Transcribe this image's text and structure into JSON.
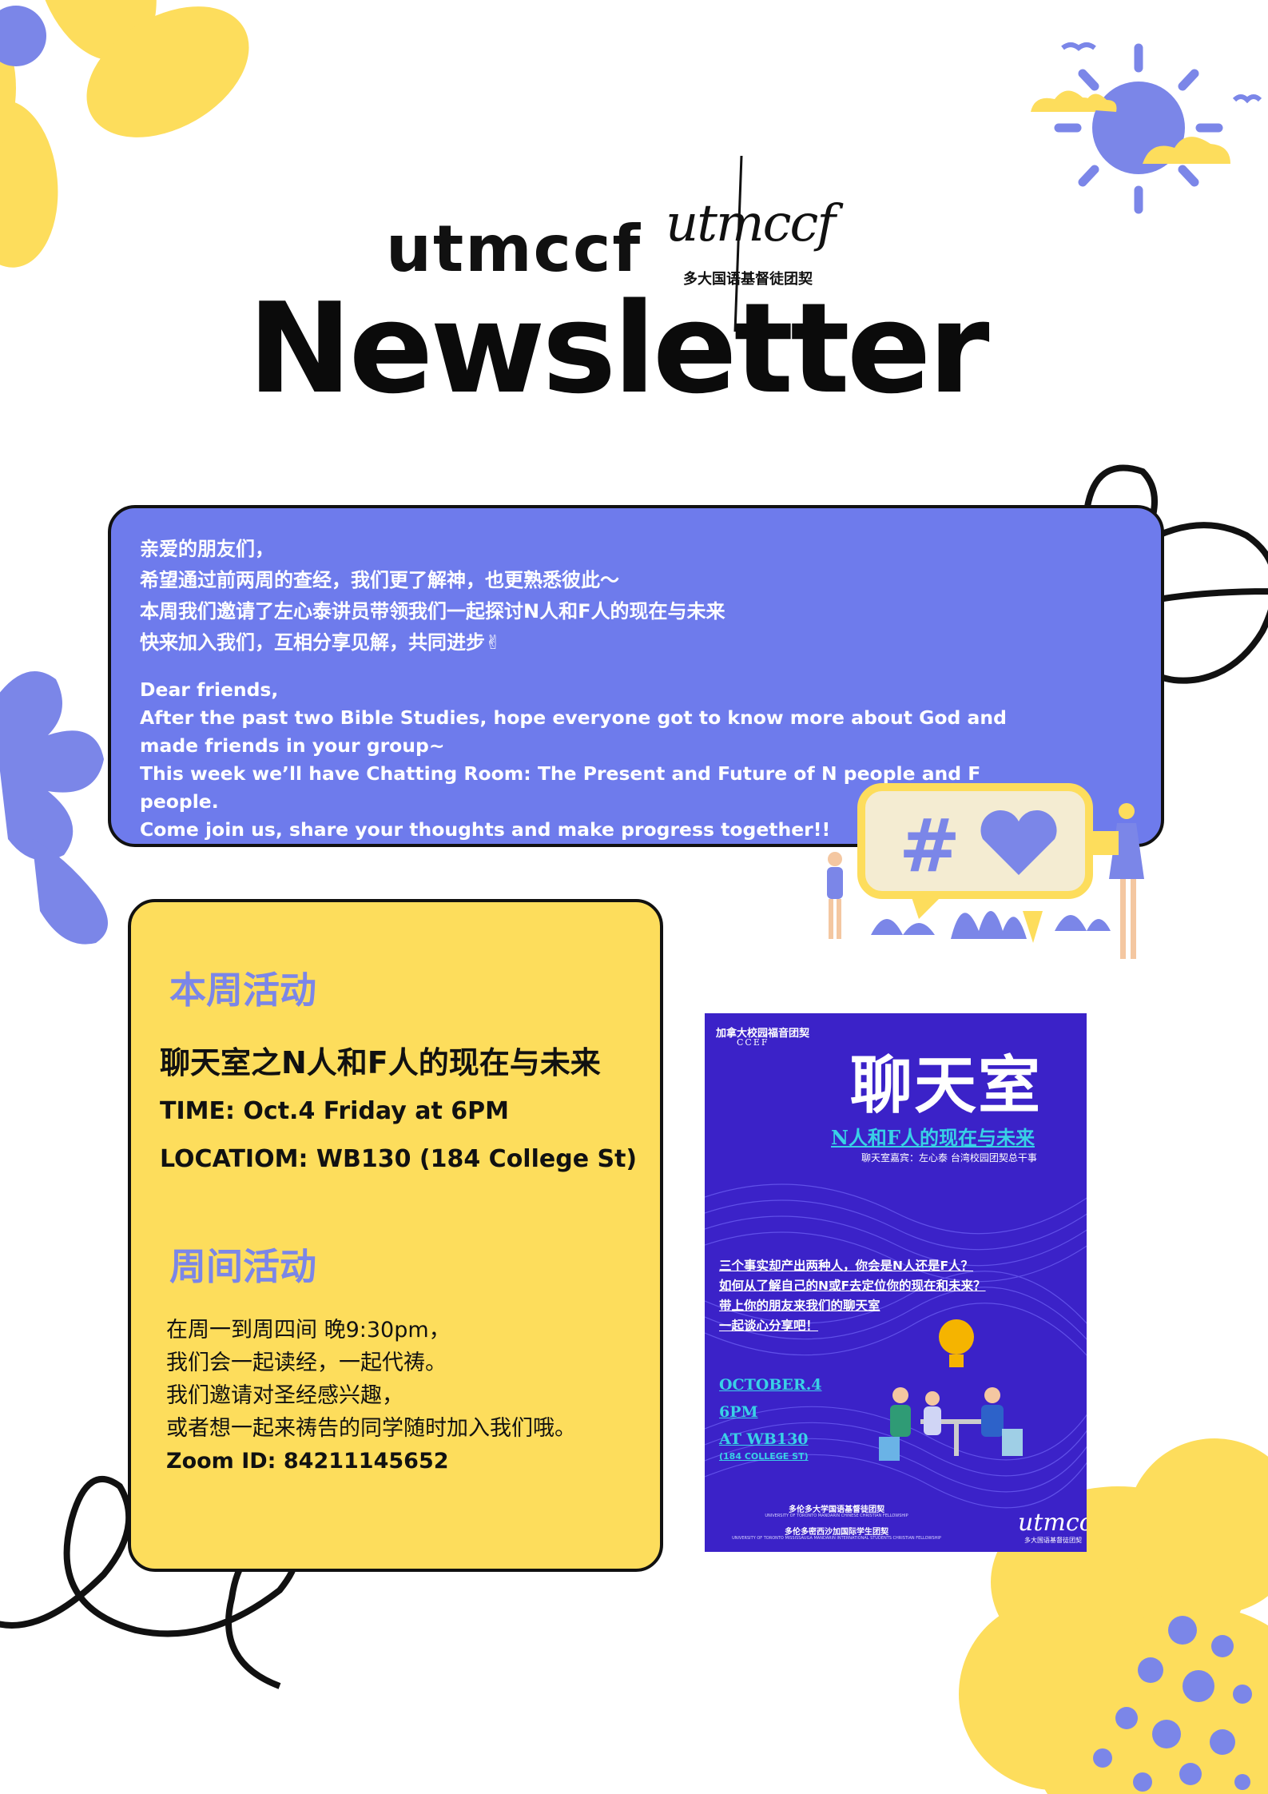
{
  "header": {
    "brand": "utmccf",
    "logo_text": "utmccf",
    "logo_subtitle": "多大国语基督徒团契",
    "title": "Newsletter"
  },
  "message": {
    "chinese": [
      "亲爱的朋友们，",
      "希望通过前两周的查经，我们更了解神，也更熟悉彼此～",
      "本周我们邀请了左心泰讲员带领我们一起探讨N人和F人的现在与未来",
      "快来加入我们，互相分享见解，共同进步✌"
    ],
    "english": [
      "Dear friends,",
      "After the past two Bible Studies, hope everyone got to know more about God and made friends in your group~",
      "This week we’ll have Chatting Room: The Present and Future of N people and F people.",
      "Come join us, share your thoughts and make progress together!!"
    ]
  },
  "this_week": {
    "heading": "本周活动",
    "event_title": "聊天室之N人和F人的现在与未来",
    "time": "TIME: Oct.4 Friday at 6PM",
    "location": "LOCATIOM: WB130 (184 College St)"
  },
  "weekly": {
    "heading": "周间活动",
    "lines": [
      "在周一到周四间 晚9:30pm，",
      "我们会一起读经，一起代祷。",
      "我们邀请对圣经感兴趣，",
      "或者想一起来祷告的同学随时加入我们哦。"
    ],
    "zoom": "Zoom ID: 84211145652"
  },
  "poster": {
    "org": "加拿大校园福音团契",
    "org_en": "CCEF",
    "title": "聊天室",
    "subtitle": "N人和F人的现在与未来",
    "guest": "聊天室嘉宾：左心泰 台湾校园团契总干事",
    "questions": [
      "三个事实却产出两种人，你会是N人还是F人？",
      "如何从了解自己的N或F去定位你的现在和未来？",
      "带上你的朋友来我们的聊天室",
      "一起谈心分享吧！"
    ],
    "date_lines": [
      "OCTOBER.4",
      "6PM",
      "AT WB130"
    ],
    "address": "(184 COLLEGE ST)",
    "footer_1": "多伦多大学国语基督徒团契",
    "footer_1_en": "UNIVERSITY OF TORONTO MANDARIN CHINESE CHRISTIAN FELLOWSHIP",
    "footer_2": "多伦多密西沙加国际学生团契",
    "footer_2_en": "UNIVERSITY OF TORONTO MISSISSAUGA MANDARIN INTERNATIONAL STUDENTS CHRISTIAN FELLOWSHIP",
    "logo_text": "utmccf",
    "logo_subtitle": "多大国语基督徒团契"
  },
  "icons": {
    "hashtag": "#",
    "heart": "heart-icon"
  },
  "colors": {
    "periwinkle": "#6e7bec",
    "yellow": "#fddd5c",
    "poster_purple": "#3b22c8",
    "poster_cyan": "#39d1e6",
    "heading_purple": "#7b86e8"
  }
}
